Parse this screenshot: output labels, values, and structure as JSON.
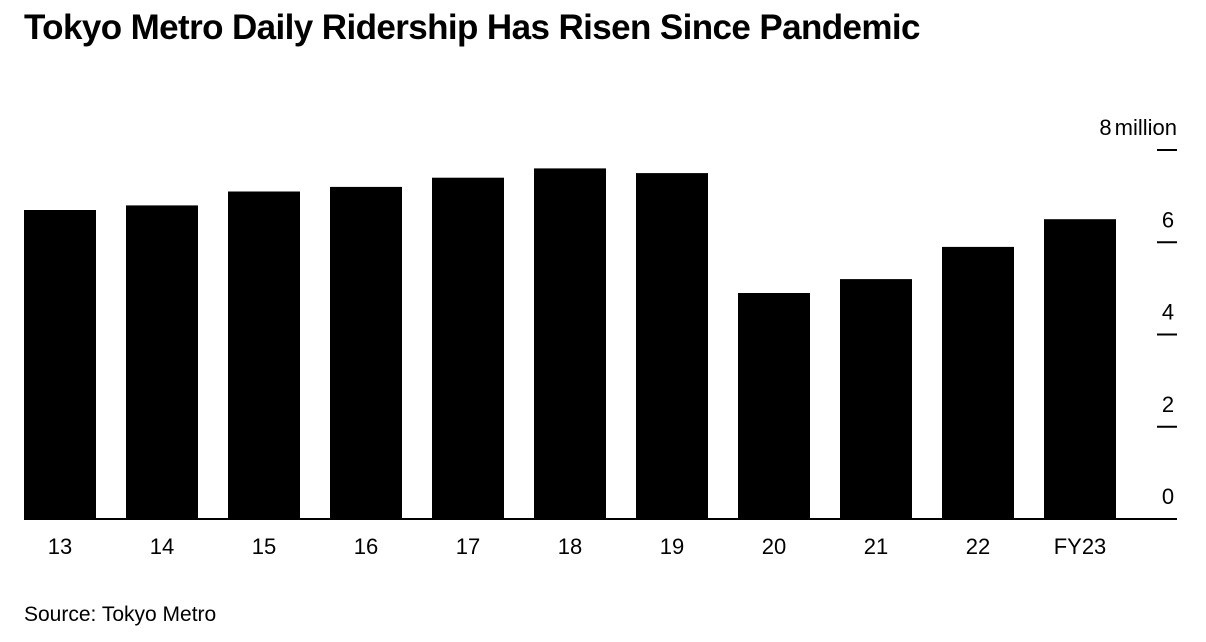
{
  "title": "Tokyo Metro Daily Ridership Has Risen Since Pandemic",
  "source": "Source: Tokyo Metro",
  "chart_data": {
    "type": "bar",
    "categories": [
      "13",
      "14",
      "15",
      "16",
      "17",
      "18",
      "19",
      "20",
      "21",
      "22",
      "FY23"
    ],
    "values": [
      6.7,
      6.8,
      7.1,
      7.2,
      7.4,
      7.6,
      7.5,
      4.9,
      5.2,
      5.9,
      6.5
    ],
    "ylim": [
      0,
      8
    ],
    "yticks": [
      0,
      2,
      4,
      6,
      8
    ],
    "ytick_labels": [
      "0",
      "2",
      "4",
      "6",
      "8"
    ],
    "y_unit": "million",
    "y_axis_side": "right",
    "bar_color": "#000000",
    "grid": false
  }
}
